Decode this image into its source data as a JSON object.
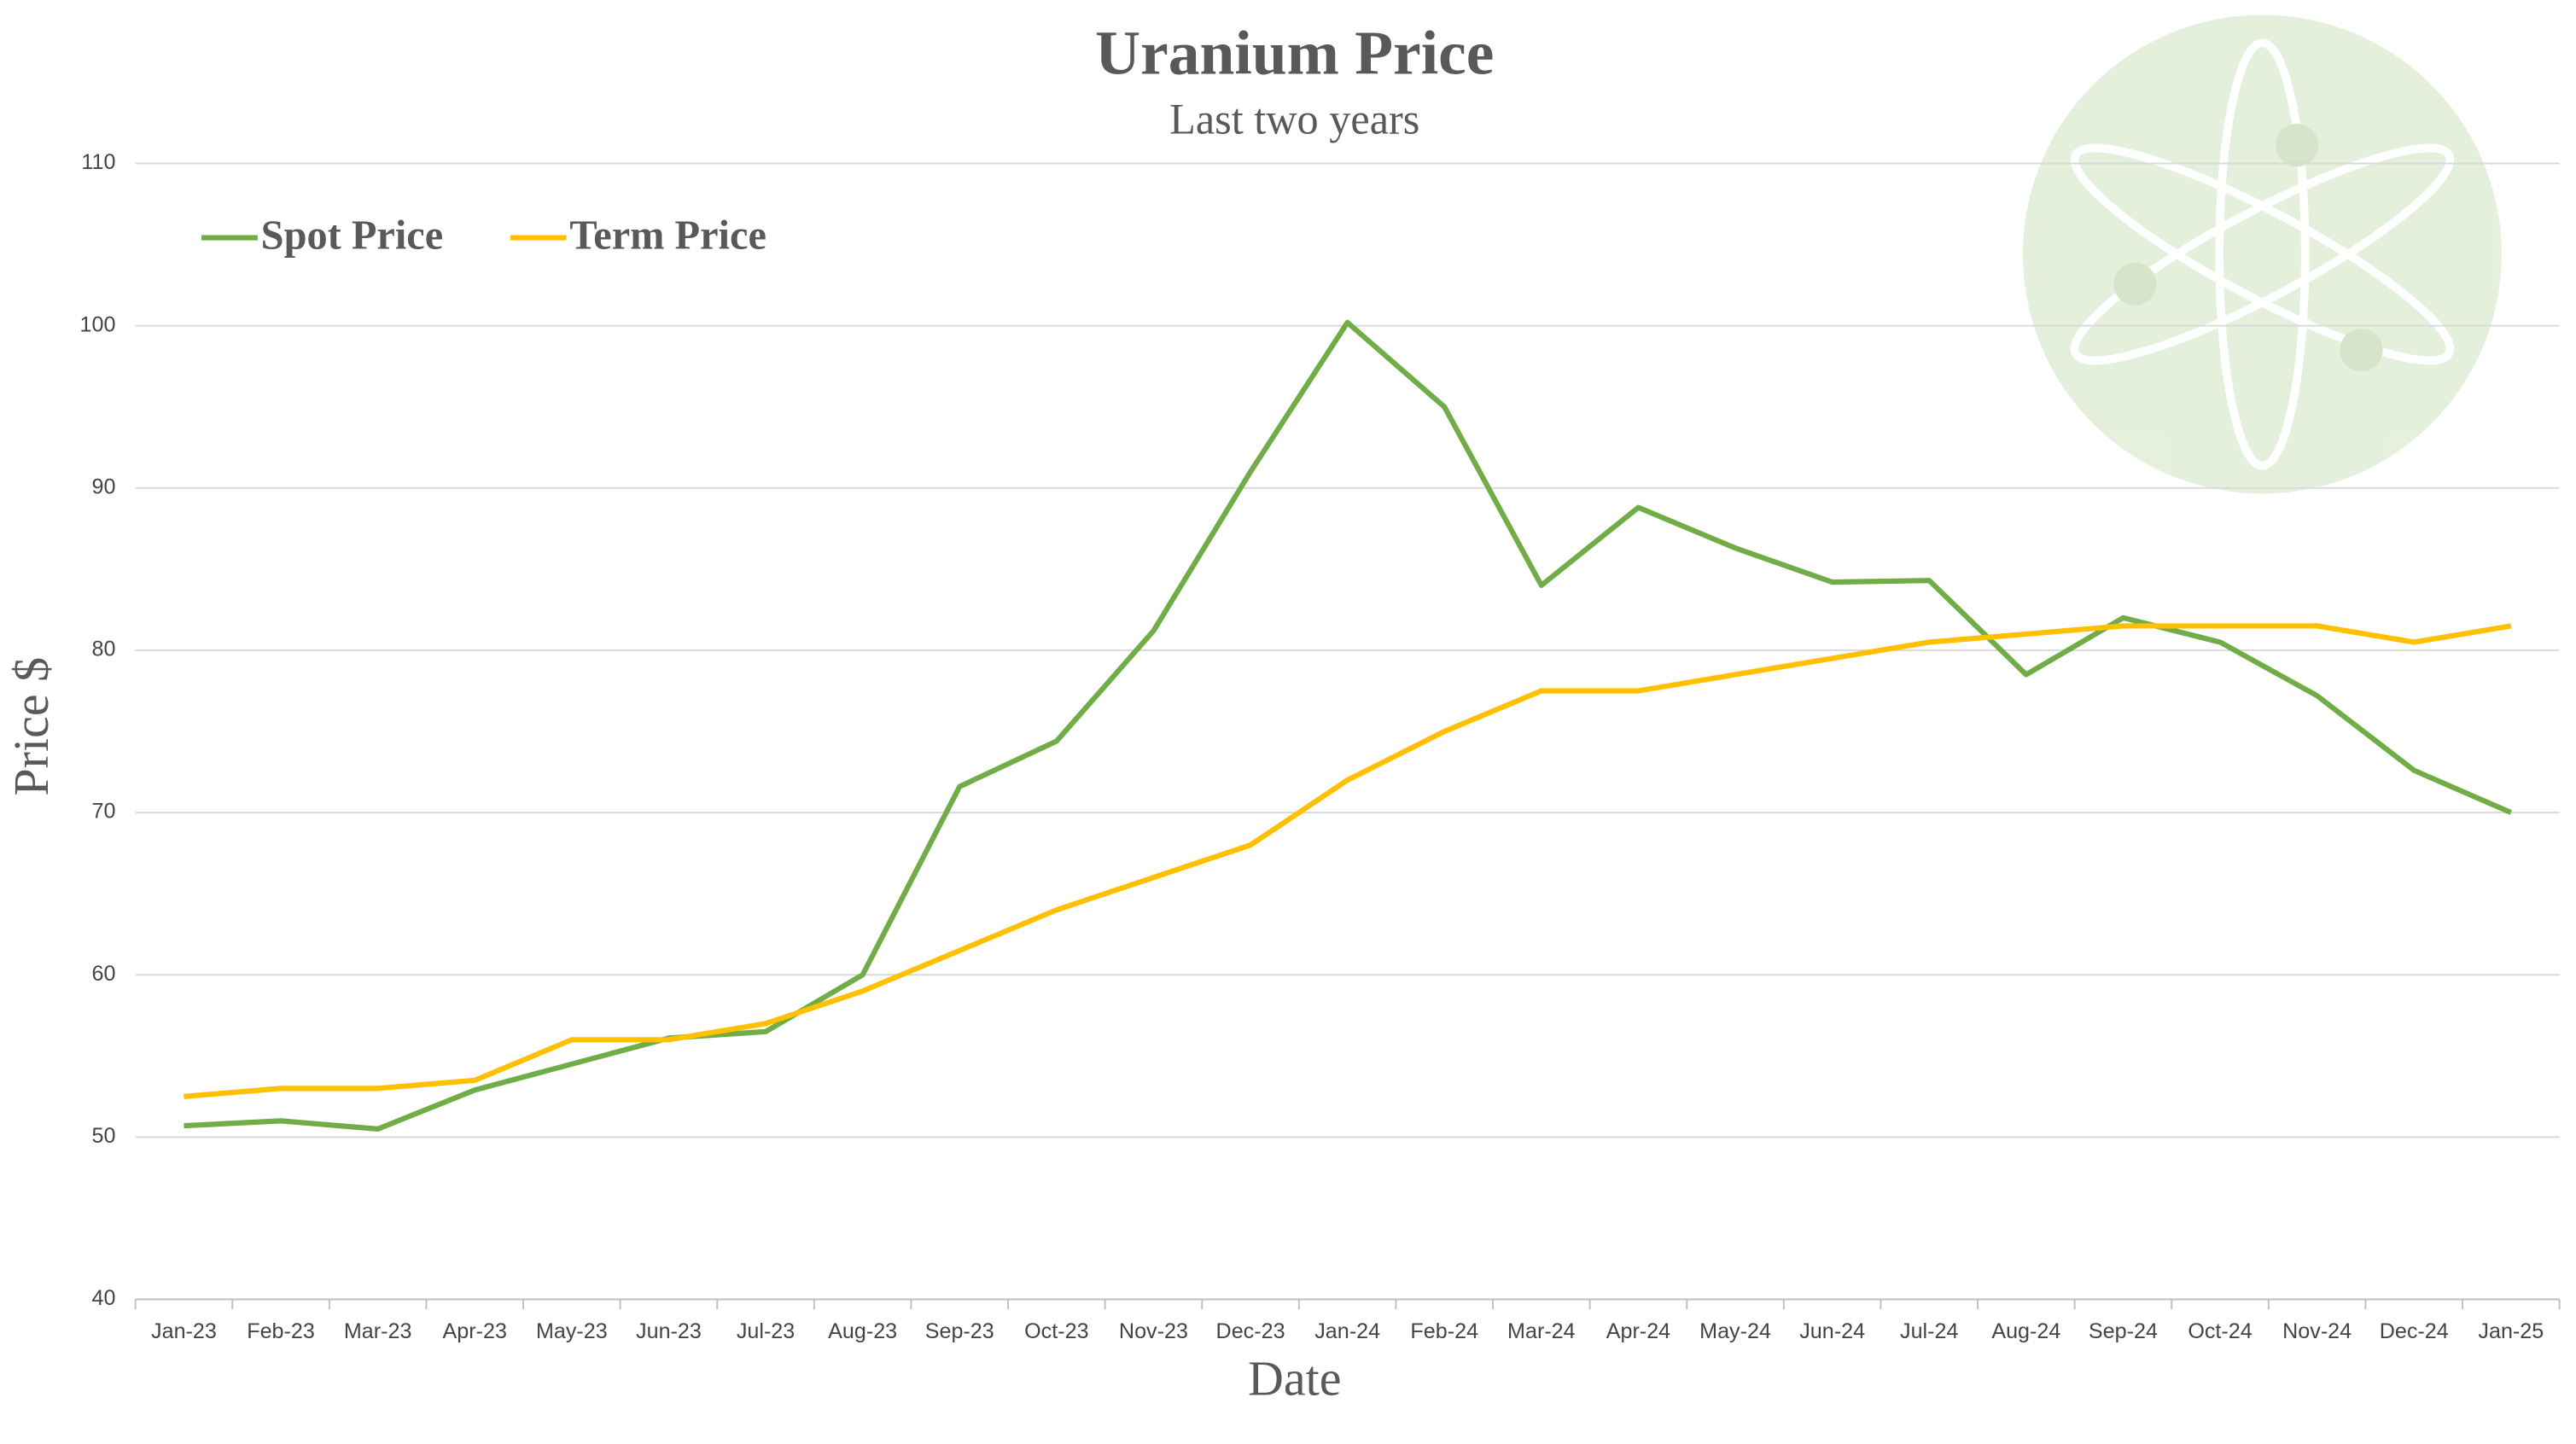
{
  "chart_data": {
    "type": "line",
    "title": "Uranium Price",
    "subtitle": "Last two years",
    "x_label": "Date",
    "y_label": "Price $",
    "categories": [
      "Jan-23",
      "Feb-23",
      "Mar-23",
      "Apr-23",
      "May-23",
      "Jun-23",
      "Jul-23",
      "Aug-23",
      "Sep-23",
      "Oct-23",
      "Nov-23",
      "Dec-23",
      "Jan-24",
      "Feb-24",
      "Mar-24",
      "Apr-24",
      "May-24",
      "Jun-24",
      "Jul-24",
      "Aug-24",
      "Sep-24",
      "Oct-24",
      "Nov-24",
      "Dec-24",
      "Jan-25"
    ],
    "series": [
      {
        "name": "Spot Price",
        "color": "#70ad47",
        "values": [
          50.7,
          51,
          50.5,
          52.9,
          54.5,
          56.1,
          56.5,
          60,
          71.6,
          74.4,
          81.2,
          91,
          100.2,
          95,
          84,
          88.8,
          86.3,
          84.2,
          84.3,
          78.5,
          82,
          80.5,
          77.2,
          72.6,
          70
        ]
      },
      {
        "name": "Term Price",
        "color": "#ffc000",
        "values": [
          52.5,
          53,
          53,
          53.5,
          56,
          56,
          57,
          59,
          61.5,
          64,
          66,
          68,
          72,
          75,
          77.5,
          77.5,
          78.5,
          79.5,
          80.5,
          81,
          81.5,
          81.5,
          81.5,
          80.5,
          81.5
        ]
      }
    ],
    "ylim": [
      40,
      110
    ],
    "yticks": [
      40,
      50,
      60,
      70,
      80,
      90,
      100,
      110
    ],
    "grid": true,
    "legend": "top-left"
  }
}
